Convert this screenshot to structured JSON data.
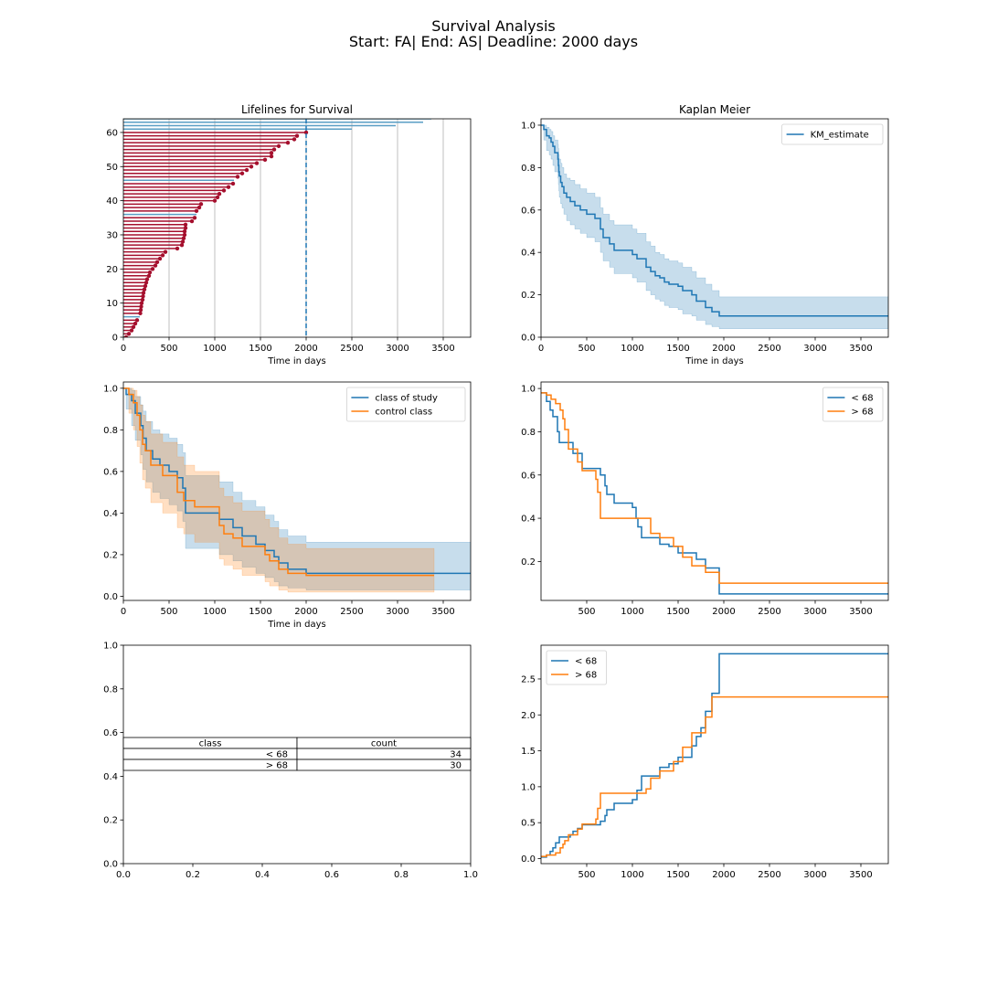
{
  "figure": {
    "title_line1": "Survival Analysis",
    "title_line2": "Start: FA| End: AS| Deadline: 2000 days"
  },
  "colors": {
    "blue": "#1f77b4",
    "orange": "#ff7f0e",
    "lifeline_observed": "#a50f2d",
    "lifeline_censored": "#5a9ec4"
  },
  "chart_data": [
    {
      "id": "lifelines",
      "type": "lifelines",
      "title": "Lifelines for Survival",
      "xlabel": "Time in days",
      "ylabel": "",
      "xlim": [
        0,
        3800
      ],
      "ylim": [
        0,
        64
      ],
      "xticks": [
        0,
        500,
        1000,
        1500,
        2000,
        2500,
        3000,
        3500
      ],
      "yticks": [
        0,
        10,
        20,
        30,
        40,
        50,
        60
      ],
      "grid": "vertical",
      "deadline": 2000,
      "durations": [
        30,
        60,
        90,
        110,
        130,
        150,
        180,
        185,
        190,
        195,
        200,
        210,
        215,
        220,
        230,
        240,
        250,
        260,
        280,
        290,
        320,
        350,
        370,
        400,
        430,
        460,
        590,
        640,
        650,
        660,
        670,
        670,
        680,
        680,
        750,
        780,
        800,
        800,
        830,
        850,
        1000,
        1030,
        1050,
        1100,
        1150,
        1200,
        1210,
        1250,
        1300,
        1350,
        1400,
        1460,
        1550,
        1620,
        1620,
        1650,
        1700,
        1800,
        1870,
        1900,
        2000,
        2500,
        2980,
        3280,
        3370,
        3800
      ],
      "observed": [
        1,
        1,
        1,
        1,
        1,
        1,
        0,
        1,
        1,
        1,
        1,
        1,
        1,
        1,
        1,
        1,
        1,
        1,
        1,
        1,
        1,
        1,
        1,
        1,
        1,
        1,
        1,
        1,
        1,
        1,
        1,
        1,
        1,
        1,
        1,
        1,
        0,
        1,
        1,
        1,
        1,
        1,
        1,
        1,
        1,
        1,
        0,
        1,
        1,
        1,
        1,
        1,
        1,
        1,
        1,
        1,
        1,
        1,
        1,
        1,
        1,
        0,
        0,
        0,
        0,
        0
      ]
    },
    {
      "id": "km",
      "type": "line",
      "title": "Kaplan Meier",
      "xlabel": "Time in days",
      "ylabel": "",
      "xlim": [
        0,
        3800
      ],
      "ylim": [
        0,
        1.03
      ],
      "xticks": [
        0,
        500,
        1000,
        1500,
        2000,
        2500,
        3000,
        3500
      ],
      "yticks": [
        0.0,
        0.2,
        0.4,
        0.6,
        0.8,
        1.0
      ],
      "legend": "top-right",
      "series": [
        {
          "name": "KM_estimate",
          "color_key": "blue",
          "x": [
            0,
            30,
            60,
            90,
            110,
            130,
            150,
            185,
            190,
            195,
            200,
            215,
            230,
            250,
            280,
            320,
            370,
            430,
            500,
            590,
            650,
            680,
            750,
            800,
            900,
            1000,
            1050,
            1150,
            1200,
            1250,
            1300,
            1350,
            1400,
            1500,
            1550,
            1650,
            1700,
            1800,
            1870,
            1950,
            3800
          ],
          "y": [
            1.0,
            0.98,
            0.95,
            0.94,
            0.92,
            0.9,
            0.87,
            0.84,
            0.81,
            0.78,
            0.76,
            0.73,
            0.71,
            0.68,
            0.66,
            0.64,
            0.62,
            0.6,
            0.58,
            0.56,
            0.51,
            0.47,
            0.44,
            0.41,
            0.41,
            0.39,
            0.37,
            0.33,
            0.31,
            0.29,
            0.28,
            0.26,
            0.25,
            0.24,
            0.22,
            0.2,
            0.17,
            0.14,
            0.12,
            0.1,
            0.1
          ],
          "ci_lower": [
            1.0,
            0.93,
            0.88,
            0.86,
            0.84,
            0.81,
            0.78,
            0.75,
            0.72,
            0.69,
            0.66,
            0.63,
            0.61,
            0.58,
            0.55,
            0.53,
            0.51,
            0.49,
            0.47,
            0.45,
            0.4,
            0.36,
            0.33,
            0.3,
            0.3,
            0.28,
            0.26,
            0.22,
            0.2,
            0.18,
            0.17,
            0.15,
            0.14,
            0.13,
            0.11,
            0.1,
            0.08,
            0.06,
            0.05,
            0.04,
            0.04
          ],
          "ci_upper": [
            1.0,
            1.0,
            0.99,
            0.98,
            0.97,
            0.95,
            0.93,
            0.91,
            0.89,
            0.86,
            0.84,
            0.82,
            0.8,
            0.77,
            0.75,
            0.74,
            0.72,
            0.7,
            0.68,
            0.66,
            0.61,
            0.58,
            0.55,
            0.53,
            0.53,
            0.51,
            0.49,
            0.45,
            0.43,
            0.4,
            0.39,
            0.37,
            0.36,
            0.35,
            0.33,
            0.31,
            0.28,
            0.25,
            0.22,
            0.19,
            0.19
          ]
        }
      ]
    },
    {
      "id": "group_km",
      "type": "line",
      "title": "",
      "xlabel": "Time in days",
      "ylabel": "",
      "xlim": [
        0,
        3800
      ],
      "ylim": [
        -0.02,
        1.03
      ],
      "xticks": [
        0,
        500,
        1000,
        1500,
        2000,
        2500,
        3000,
        3500
      ],
      "yticks": [
        0.0,
        0.2,
        0.4,
        0.6,
        0.8,
        1.0
      ],
      "legend": "top-right",
      "series": [
        {
          "name": "class of study",
          "color_key": "blue",
          "x": [
            0,
            30,
            90,
            130,
            190,
            215,
            250,
            320,
            400,
            500,
            590,
            650,
            680,
            1000,
            1050,
            1200,
            1300,
            1450,
            1550,
            1650,
            1700,
            1800,
            2000,
            3800
          ],
          "y": [
            1.0,
            0.97,
            0.94,
            0.88,
            0.82,
            0.76,
            0.7,
            0.66,
            0.63,
            0.6,
            0.57,
            0.52,
            0.4,
            0.4,
            0.37,
            0.33,
            0.29,
            0.25,
            0.22,
            0.19,
            0.16,
            0.13,
            0.11,
            0.11
          ],
          "ci_lower": [
            1.0,
            0.9,
            0.82,
            0.75,
            0.68,
            0.61,
            0.55,
            0.5,
            0.47,
            0.44,
            0.41,
            0.36,
            0.23,
            0.23,
            0.2,
            0.17,
            0.14,
            0.11,
            0.09,
            0.07,
            0.05,
            0.04,
            0.03,
            0.03
          ],
          "ci_upper": [
            1.0,
            1.0,
            0.99,
            0.96,
            0.92,
            0.89,
            0.84,
            0.8,
            0.78,
            0.76,
            0.73,
            0.69,
            0.58,
            0.58,
            0.55,
            0.5,
            0.46,
            0.43,
            0.39,
            0.36,
            0.32,
            0.29,
            0.26,
            0.26
          ]
        },
        {
          "name": "control class",
          "color_key": "orange",
          "x": [
            0,
            60,
            110,
            150,
            180,
            210,
            240,
            300,
            430,
            590,
            660,
            780,
            1050,
            1100,
            1200,
            1300,
            1550,
            1600,
            1700,
            1800,
            2000,
            3400
          ],
          "y": [
            1.0,
            0.97,
            0.93,
            0.87,
            0.8,
            0.73,
            0.7,
            0.63,
            0.58,
            0.5,
            0.46,
            0.43,
            0.34,
            0.3,
            0.28,
            0.24,
            0.2,
            0.17,
            0.13,
            0.11,
            0.1,
            0.1
          ],
          "ci_lower": [
            1.0,
            0.88,
            0.8,
            0.72,
            0.64,
            0.56,
            0.52,
            0.45,
            0.4,
            0.33,
            0.3,
            0.26,
            0.18,
            0.15,
            0.13,
            0.1,
            0.07,
            0.05,
            0.03,
            0.02,
            0.02,
            0.02
          ],
          "ci_upper": [
            1.0,
            1.0,
            0.99,
            0.96,
            0.92,
            0.87,
            0.84,
            0.78,
            0.74,
            0.67,
            0.63,
            0.6,
            0.52,
            0.48,
            0.45,
            0.41,
            0.37,
            0.33,
            0.28,
            0.25,
            0.23,
            0.23
          ]
        }
      ]
    },
    {
      "id": "age_km",
      "type": "line",
      "title": "",
      "xlabel": "",
      "ylabel": "",
      "xlim": [
        0,
        3800
      ],
      "ylim": [
        0.02,
        1.03
      ],
      "xticks": [
        500,
        1000,
        1500,
        2000,
        2500,
        3000,
        3500
      ],
      "yticks": [
        0.2,
        0.4,
        0.6,
        0.8,
        1.0
      ],
      "legend": "top-right",
      "series": [
        {
          "name": "< 68",
          "color_key": "blue",
          "x": [
            0,
            60,
            100,
            130,
            180,
            200,
            260,
            350,
            450,
            620,
            650,
            700,
            720,
            800,
            1000,
            1040,
            1060,
            1100,
            1300,
            1400,
            1500,
            1600,
            1700,
            1800,
            1950,
            3800
          ],
          "y": [
            0.98,
            0.94,
            0.9,
            0.87,
            0.8,
            0.75,
            0.75,
            0.7,
            0.63,
            0.63,
            0.6,
            0.55,
            0.51,
            0.47,
            0.45,
            0.4,
            0.36,
            0.31,
            0.28,
            0.27,
            0.24,
            0.24,
            0.21,
            0.17,
            0.05,
            0.05
          ]
        },
        {
          "name": "> 68",
          "color_key": "orange",
          "x": [
            0,
            60,
            110,
            160,
            210,
            240,
            260,
            300,
            400,
            450,
            600,
            620,
            650,
            1150,
            1200,
            1300,
            1450,
            1550,
            1650,
            1800,
            1950,
            3800
          ],
          "y": [
            0.98,
            0.97,
            0.95,
            0.93,
            0.9,
            0.86,
            0.81,
            0.72,
            0.66,
            0.62,
            0.58,
            0.52,
            0.4,
            0.4,
            0.33,
            0.31,
            0.27,
            0.22,
            0.18,
            0.15,
            0.1,
            0.1
          ]
        }
      ]
    },
    {
      "id": "class_table",
      "type": "table",
      "title": "",
      "xlim": [
        0,
        1
      ],
      "ylim": [
        0,
        1
      ],
      "xticks": [
        0.0,
        0.2,
        0.4,
        0.6,
        0.8,
        1.0
      ],
      "yticks": [
        0.0,
        0.2,
        0.4,
        0.6,
        0.8,
        1.0
      ],
      "columns": [
        "class",
        "count"
      ],
      "rows": [
        [
          "< 68",
          "34"
        ],
        [
          "> 68",
          "30"
        ]
      ]
    },
    {
      "id": "age_cumhaz",
      "type": "line",
      "title": "",
      "xlabel": "",
      "ylabel": "",
      "xlim": [
        0,
        3800
      ],
      "ylim": [
        -0.07,
        2.97
      ],
      "xticks": [
        500,
        1000,
        1500,
        2000,
        2500,
        3000,
        3500
      ],
      "yticks": [
        0.0,
        0.5,
        1.0,
        1.5,
        2.0,
        2.5
      ],
      "legend": "top-left",
      "series": [
        {
          "name": "< 68",
          "color_key": "blue",
          "x": [
            0,
            60,
            100,
            130,
            160,
            200,
            260,
            320,
            350,
            400,
            450,
            620,
            650,
            700,
            720,
            800,
            1000,
            1050,
            1100,
            1300,
            1400,
            1500,
            1600,
            1650,
            1700,
            1750,
            1800,
            1870,
            1950,
            3800
          ],
          "y": [
            0.02,
            0.05,
            0.1,
            0.15,
            0.22,
            0.3,
            0.3,
            0.33,
            0.38,
            0.42,
            0.47,
            0.47,
            0.52,
            0.6,
            0.68,
            0.77,
            0.82,
            0.95,
            1.15,
            1.27,
            1.32,
            1.41,
            1.41,
            1.57,
            1.7,
            1.82,
            2.05,
            2.3,
            2.85,
            2.85
          ]
        },
        {
          "name": "> 68",
          "color_key": "orange",
          "x": [
            0,
            60,
            110,
            160,
            210,
            240,
            260,
            300,
            400,
            450,
            600,
            620,
            650,
            1100,
            1150,
            1200,
            1300,
            1450,
            1550,
            1650,
            1800,
            1870,
            3800
          ],
          "y": [
            0.03,
            0.05,
            0.05,
            0.08,
            0.15,
            0.2,
            0.25,
            0.33,
            0.41,
            0.48,
            0.55,
            0.7,
            0.91,
            0.91,
            0.97,
            1.12,
            1.22,
            1.35,
            1.55,
            1.75,
            1.97,
            2.25,
            2.25
          ]
        }
      ]
    }
  ]
}
